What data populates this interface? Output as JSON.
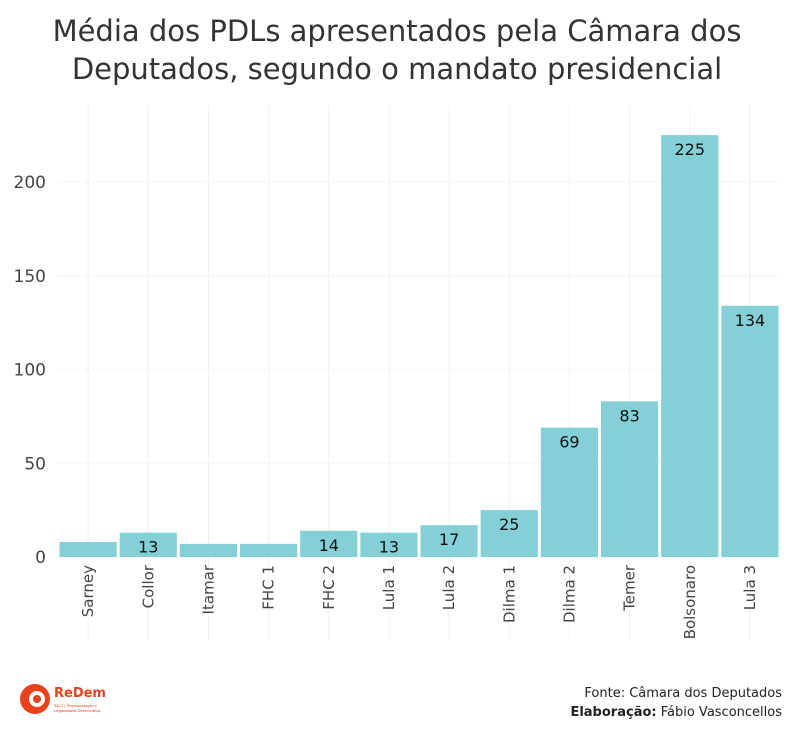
{
  "title_line1": "Média dos PDLs apresentados pela Câmara dos",
  "title_line2": "Deputados, segundo o mandato presidencial",
  "footer": {
    "source": "Fonte: Câmara dos Deputados",
    "credit_label": "Elaboração:",
    "credit_name": "Fábio Vasconcellos"
  },
  "logo": {
    "name": "ReDem",
    "tagline": "INCT | Representação e Legitimidade Democrática"
  },
  "colors": {
    "bar": "#84d0d6",
    "text": "#333333",
    "logo": "#e8421c"
  },
  "chart_data": {
    "type": "bar",
    "title": "Média dos PDLs apresentados pela Câmara dos Deputados, segundo o mandato presidencial",
    "categories": [
      "Sarney",
      "Collor",
      "Itamar",
      "FHC 1",
      "FHC 2",
      "Lula 1",
      "Lula 2",
      "Dilma 1",
      "Dilma 2",
      "Temer",
      "Bolsonaro",
      "Lula 3"
    ],
    "values": [
      8,
      13,
      7,
      7,
      14,
      13,
      17,
      25,
      69,
      83,
      225,
      134
    ],
    "labels": [
      "",
      "13",
      "",
      "",
      "14",
      "13",
      "17",
      "25",
      "69",
      "83",
      "225",
      "134"
    ],
    "yticks": [
      0,
      50,
      100,
      150,
      200
    ],
    "ylim": [
      0,
      240
    ],
    "xlabel": "",
    "ylabel": "",
    "grid": false
  }
}
